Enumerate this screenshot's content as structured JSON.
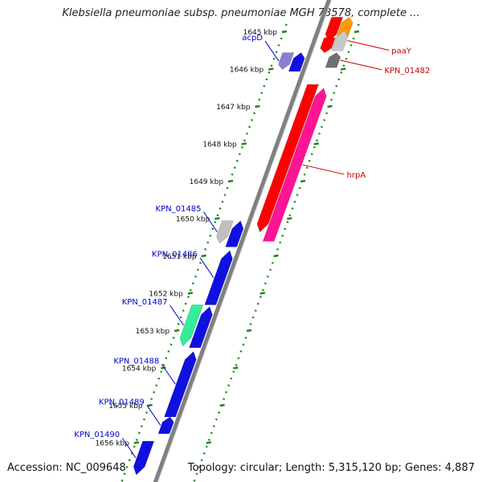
{
  "title": "Klebsiella pneumoniae subsp. pneumoniae MGH 78578, complete ...",
  "footer": {
    "accession": "Accession: NC_009648",
    "summary": "Topology: circular; Length: 5,315,120 bp; Genes: 4,887"
  },
  "ticks": [
    {
      "label": "1645 kbp",
      "pos": 1645
    },
    {
      "label": "1646 kbp",
      "pos": 1646
    },
    {
      "label": "1647 kbp",
      "pos": 1647
    },
    {
      "label": "1648 kbp",
      "pos": 1648
    },
    {
      "label": "1649 kbp",
      "pos": 1649
    },
    {
      "label": "1650 kbp",
      "pos": 1650
    },
    {
      "label": "1651 kbp",
      "pos": 1651
    },
    {
      "label": "1652 kbp",
      "pos": 1652
    },
    {
      "label": "1653 kbp",
      "pos": 1653
    },
    {
      "label": "1654 kbp",
      "pos": 1654
    },
    {
      "label": "1655 kbp",
      "pos": 1655
    },
    {
      "label": "1656 kbp",
      "pos": 1656
    }
  ],
  "genes": [
    {
      "name": "acpD",
      "start": 1645.55,
      "end": 1646.0,
      "strand": "minus",
      "color": "#8a7fd6",
      "label_color": "#0000cc"
    },
    {
      "name": "",
      "start": 1645.55,
      "end": 1646.05,
      "strand": "plus",
      "color": "#1010e0",
      "label_color": "#0000cc"
    },
    {
      "name": "",
      "start": 1644.6,
      "end": 1645.25,
      "strand": "far",
      "color": "#ff0000",
      "label_color": "#cc0000"
    },
    {
      "name": "",
      "start": 1644.6,
      "end": 1645.1,
      "strand": "far2",
      "color": "#ff9900",
      "label_color": "#cc0000"
    },
    {
      "name": "paaY",
      "start": 1644.95,
      "end": 1645.5,
      "strand": "far2",
      "color": "#c8c8c8",
      "label_color": "#cc0000"
    },
    {
      "name": "",
      "start": 1645.15,
      "end": 1645.55,
      "strand": "far",
      "color": "#ff0000",
      "label_color": "#cc0000"
    },
    {
      "name": "KPN_01482",
      "start": 1645.55,
      "end": 1645.95,
      "strand": "far2",
      "color": "#707070",
      "label_color": "#cc0000"
    },
    {
      "name": "",
      "start": 1646.4,
      "end": 1650.35,
      "strand": "far",
      "color": "#ff0000",
      "label_color": "#cc0000"
    },
    {
      "name": "hrpA",
      "start": 1646.5,
      "end": 1650.6,
      "strand": "far2",
      "color": "#ff1493",
      "label_color": "#cc0000"
    },
    {
      "name": "KPN_01485",
      "start": 1650.05,
      "end": 1650.65,
      "strand": "minus",
      "color": "#c0c0c0",
      "label_color": "#0000cc"
    },
    {
      "name": "",
      "start": 1650.05,
      "end": 1650.75,
      "strand": "plus",
      "color": "#1010e0",
      "label_color": "#0000cc"
    },
    {
      "name": "KPN_01486",
      "start": 1650.85,
      "end": 1652.3,
      "strand": "plus",
      "color": "#1010e0",
      "label_color": "#0000cc"
    },
    {
      "name": "KPN_01487",
      "start": 1652.3,
      "end": 1653.4,
      "strand": "minus",
      "color": "#33ee99",
      "label_color": "#0000cc"
    },
    {
      "name": "",
      "start": 1652.35,
      "end": 1653.45,
      "strand": "plus",
      "color": "#1010e0",
      "label_color": "#0000cc"
    },
    {
      "name": "KPN_01488",
      "start": 1653.55,
      "end": 1655.3,
      "strand": "plus",
      "color": "#1010e0",
      "label_color": "#0000cc"
    },
    {
      "name": "KPN_01489",
      "start": 1655.3,
      "end": 1655.75,
      "strand": "plus",
      "color": "#1010e0",
      "label_color": "#0000cc"
    },
    {
      "name": "KPN_01490",
      "start": 1655.95,
      "end": 1656.85,
      "strand": "minus",
      "color": "#1010e0",
      "label_color": "#0000cc"
    }
  ],
  "colors": {
    "backbone": "#808080",
    "tick_dots": "#1a8a1a",
    "plus_label": "#0000cc",
    "minus_label": "#cc0000"
  }
}
